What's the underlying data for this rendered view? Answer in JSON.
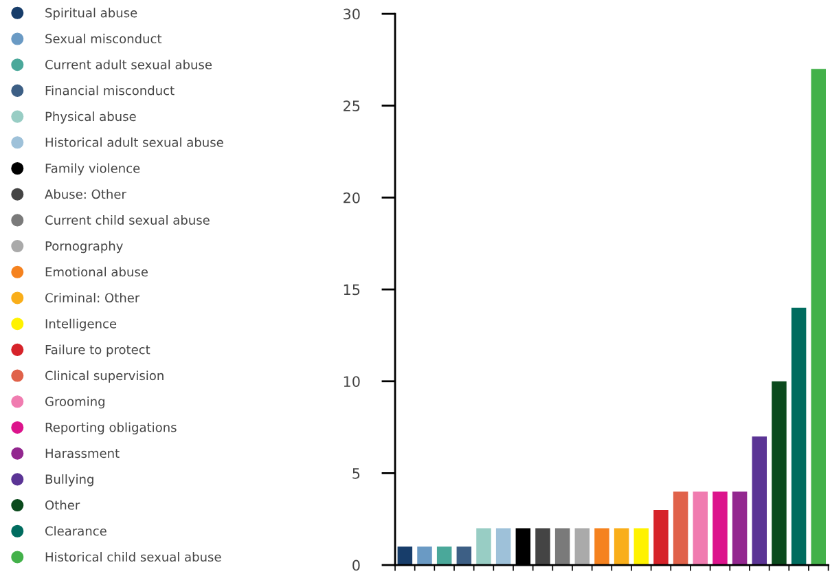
{
  "chart_data": {
    "type": "bar",
    "categories": [
      null,
      null,
      null,
      null,
      null,
      null,
      null,
      null,
      null,
      null,
      null,
      null,
      null,
      null,
      null,
      null,
      null,
      null,
      null,
      null,
      null,
      null
    ],
    "series": [
      {
        "name": "Spiritual abuse",
        "color": "#173d6a",
        "values": [
          1,
          null,
          null,
          null,
          null,
          null,
          null,
          null,
          null,
          null,
          null,
          null,
          null,
          null,
          null,
          null,
          null,
          null,
          null,
          null,
          null,
          null
        ]
      },
      {
        "name": "Sexual misconduct",
        "color": "#6a9ac4",
        "values": [
          null,
          1,
          null,
          null,
          null,
          null,
          null,
          null,
          null,
          null,
          null,
          null,
          null,
          null,
          null,
          null,
          null,
          null,
          null,
          null,
          null,
          null
        ]
      },
      {
        "name": "Current adult sexual abuse",
        "color": "#4aa89a",
        "values": [
          null,
          null,
          1,
          null,
          null,
          null,
          null,
          null,
          null,
          null,
          null,
          null,
          null,
          null,
          null,
          null,
          null,
          null,
          null,
          null,
          null,
          null
        ]
      },
      {
        "name": "Financial misconduct",
        "color": "#3d5f85",
        "values": [
          null,
          null,
          null,
          1,
          null,
          null,
          null,
          null,
          null,
          null,
          null,
          null,
          null,
          null,
          null,
          null,
          null,
          null,
          null,
          null,
          null,
          null
        ]
      },
      {
        "name": "Physical abuse",
        "color": "#98cdc4",
        "values": [
          null,
          null,
          null,
          null,
          2,
          null,
          null,
          null,
          null,
          null,
          null,
          null,
          null,
          null,
          null,
          null,
          null,
          null,
          null,
          null,
          null,
          null
        ]
      },
      {
        "name": "Historical adult sexual abuse",
        "color": "#9ec1d9",
        "values": [
          null,
          null,
          null,
          null,
          null,
          2,
          null,
          null,
          null,
          null,
          null,
          null,
          null,
          null,
          null,
          null,
          null,
          null,
          null,
          null,
          null,
          null
        ]
      },
      {
        "name": "Family violence",
        "color": "#000000",
        "values": [
          null,
          null,
          null,
          null,
          null,
          null,
          2,
          null,
          null,
          null,
          null,
          null,
          null,
          null,
          null,
          null,
          null,
          null,
          null,
          null,
          null,
          null
        ]
      },
      {
        "name": "Abuse: Other",
        "color": "#444444",
        "values": [
          null,
          null,
          null,
          null,
          null,
          null,
          null,
          2,
          null,
          null,
          null,
          null,
          null,
          null,
          null,
          null,
          null,
          null,
          null,
          null,
          null,
          null
        ]
      },
      {
        "name": "Current child sexual abuse",
        "color": "#7a7a7a",
        "values": [
          null,
          null,
          null,
          null,
          null,
          null,
          null,
          null,
          2,
          null,
          null,
          null,
          null,
          null,
          null,
          null,
          null,
          null,
          null,
          null,
          null,
          null
        ]
      },
      {
        "name": "Pornography",
        "color": "#aaaaaa",
        "values": [
          null,
          null,
          null,
          null,
          null,
          null,
          null,
          null,
          null,
          2,
          null,
          null,
          null,
          null,
          null,
          null,
          null,
          null,
          null,
          null,
          null,
          null
        ]
      },
      {
        "name": "Emotional abuse",
        "color": "#f5821f",
        "values": [
          null,
          null,
          null,
          null,
          null,
          null,
          null,
          null,
          null,
          null,
          2,
          null,
          null,
          null,
          null,
          null,
          null,
          null,
          null,
          null,
          null,
          null
        ]
      },
      {
        "name": "Criminal: Other",
        "color": "#f9ae1a",
        "values": [
          null,
          null,
          null,
          null,
          null,
          null,
          null,
          null,
          null,
          null,
          null,
          2,
          null,
          null,
          null,
          null,
          null,
          null,
          null,
          null,
          null,
          null
        ]
      },
      {
        "name": "Intelligence",
        "color": "#fff200",
        "values": [
          null,
          null,
          null,
          null,
          null,
          null,
          null,
          null,
          null,
          null,
          null,
          null,
          2,
          null,
          null,
          null,
          null,
          null,
          null,
          null,
          null,
          null
        ]
      },
      {
        "name": "Failure to protect",
        "color": "#d6232a",
        "values": [
          null,
          null,
          null,
          null,
          null,
          null,
          null,
          null,
          null,
          null,
          null,
          null,
          null,
          3,
          null,
          null,
          null,
          null,
          null,
          null,
          null,
          null
        ]
      },
      {
        "name": "Clinical supervision",
        "color": "#e0624a",
        "values": [
          null,
          null,
          null,
          null,
          null,
          null,
          null,
          null,
          null,
          null,
          null,
          null,
          null,
          null,
          4,
          null,
          null,
          null,
          null,
          null,
          null,
          null
        ]
      },
      {
        "name": "Grooming",
        "color": "#f07cb0",
        "values": [
          null,
          null,
          null,
          null,
          null,
          null,
          null,
          null,
          null,
          null,
          null,
          null,
          null,
          null,
          null,
          4,
          null,
          null,
          null,
          null,
          null,
          null
        ]
      },
      {
        "name": "Reporting obligations",
        "color": "#dc148c",
        "values": [
          null,
          null,
          null,
          null,
          null,
          null,
          null,
          null,
          null,
          null,
          null,
          null,
          null,
          null,
          null,
          null,
          4,
          null,
          null,
          null,
          null,
          null
        ]
      },
      {
        "name": "Harassment",
        "color": "#93278f",
        "values": [
          null,
          null,
          null,
          null,
          null,
          null,
          null,
          null,
          null,
          null,
          null,
          null,
          null,
          null,
          null,
          null,
          null,
          4,
          null,
          null,
          null,
          null
        ]
      },
      {
        "name": "Bullying",
        "color": "#5b3495",
        "values": [
          null,
          null,
          null,
          null,
          null,
          null,
          null,
          null,
          null,
          null,
          null,
          null,
          null,
          null,
          null,
          null,
          null,
          null,
          7,
          null,
          null,
          null
        ]
      },
      {
        "name": "Other",
        "color": "#0b4a1d",
        "values": [
          null,
          null,
          null,
          null,
          null,
          null,
          null,
          null,
          null,
          null,
          null,
          null,
          null,
          null,
          null,
          null,
          null,
          null,
          null,
          10,
          null,
          null
        ]
      },
      {
        "name": "Clearance",
        "color": "#006c5f",
        "values": [
          null,
          null,
          null,
          null,
          null,
          null,
          null,
          null,
          null,
          null,
          null,
          null,
          null,
          null,
          null,
          null,
          null,
          null,
          null,
          null,
          14,
          null
        ]
      },
      {
        "name": "Historical child sexual abuse",
        "color": "#43b14a",
        "values": [
          null,
          null,
          null,
          null,
          null,
          null,
          null,
          null,
          null,
          null,
          null,
          null,
          null,
          null,
          null,
          null,
          null,
          null,
          null,
          null,
          null,
          27
        ]
      }
    ],
    "ylim": [
      0,
      30
    ],
    "yticks": [
      0,
      5,
      10,
      15,
      20,
      25,
      30
    ],
    "tick_labels": "y",
    "legend": "left",
    "marker": "circle",
    "grid": false
  }
}
